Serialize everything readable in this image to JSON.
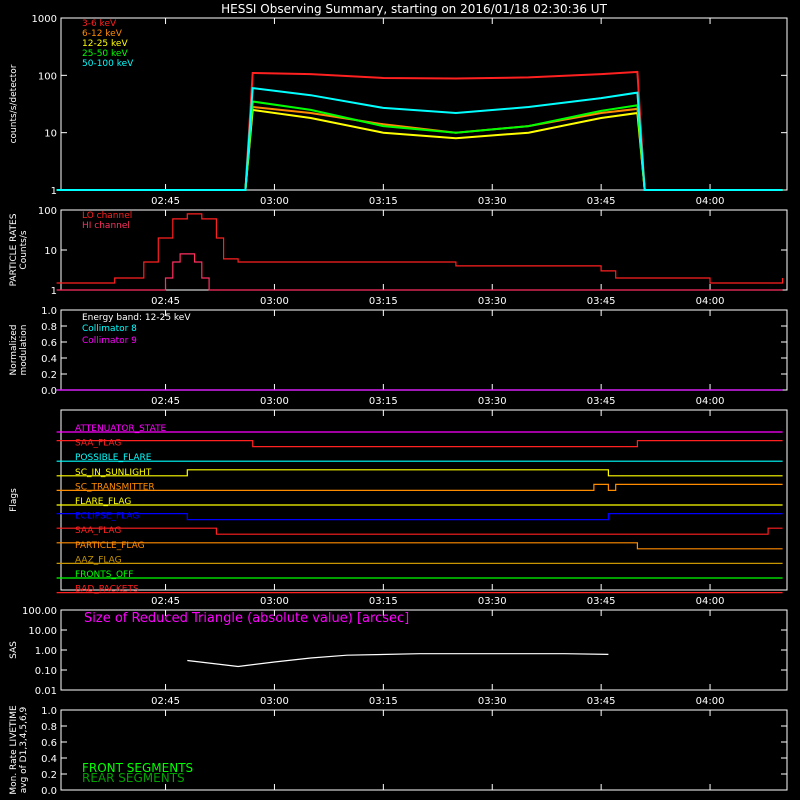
{
  "title": "HESSI Observing Summary, starting on 2016/01/18 02:30:36 UT",
  "time_ticks": [
    "02:45",
    "03:00",
    "03:15",
    "03:30",
    "03:45",
    "04:00"
  ],
  "chart_data": [
    {
      "id": "counts",
      "type": "line",
      "ylabel": "counts/s/detector",
      "yscale": "log",
      "ylim": [
        1,
        1000
      ],
      "y_ticks": [
        "1",
        "10",
        "100",
        "1000"
      ],
      "series": [
        {
          "name": "3-6 keV",
          "color": "#ff2020",
          "x": [
            "02:30",
            "02:56",
            "02:57",
            "03:05",
            "03:15",
            "03:25",
            "03:35",
            "03:45",
            "03:50",
            "03:51",
            "04:10"
          ],
          "y": [
            1,
            1,
            110,
            105,
            90,
            88,
            92,
            105,
            115,
            1,
            1
          ]
        },
        {
          "name": "6-12 keV",
          "color": "#ff8c00",
          "x": [
            "02:30",
            "02:56",
            "02:57",
            "03:05",
            "03:15",
            "03:25",
            "03:35",
            "03:45",
            "03:50",
            "03:51",
            "04:10"
          ],
          "y": [
            1,
            1,
            28,
            22,
            14,
            10,
            13,
            22,
            26,
            1,
            1
          ]
        },
        {
          "name": "12-25 keV",
          "color": "#ffff00",
          "x": [
            "02:30",
            "02:56",
            "02:57",
            "03:05",
            "03:15",
            "03:25",
            "03:35",
            "03:45",
            "03:50",
            "03:51",
            "04:10"
          ],
          "y": [
            1,
            1,
            25,
            18,
            10,
            8,
            10,
            18,
            22,
            1,
            1
          ]
        },
        {
          "name": "25-50 keV",
          "color": "#00ff00",
          "x": [
            "02:30",
            "02:56",
            "02:57",
            "03:05",
            "03:15",
            "03:25",
            "03:35",
            "03:45",
            "03:50",
            "03:51",
            "04:10"
          ],
          "y": [
            1,
            1,
            35,
            25,
            13,
            10,
            13,
            24,
            30,
            1,
            1
          ]
        },
        {
          "name": "50-100 keV",
          "color": "#00ffff",
          "x": [
            "02:30",
            "02:56",
            "02:57",
            "03:05",
            "03:15",
            "03:25",
            "03:35",
            "03:45",
            "03:50",
            "03:51",
            "04:10"
          ],
          "y": [
            1,
            1,
            60,
            45,
            27,
            22,
            28,
            40,
            50,
            1,
            1
          ]
        }
      ]
    },
    {
      "id": "particle",
      "type": "line",
      "ylabel_lines": [
        "PARTICLE RATES",
        "Counts/s"
      ],
      "yscale": "log",
      "ylim": [
        1,
        100
      ],
      "y_ticks": [
        "1",
        "10",
        "100"
      ],
      "series": [
        {
          "name": "LO channel",
          "color": "#ff2020",
          "x": [
            "02:30",
            "02:38",
            "02:42",
            "02:44",
            "02:46",
            "02:48",
            "02:50",
            "02:52",
            "02:53",
            "02:55",
            "03:05",
            "03:15",
            "03:25",
            "03:35",
            "03:45",
            "03:47",
            "04:00",
            "04:10"
          ],
          "y": [
            1.5,
            2,
            5,
            20,
            60,
            80,
            60,
            20,
            6,
            5,
            5,
            5,
            4,
            4,
            3,
            2,
            1.5,
            2
          ]
        },
        {
          "name": "HI channel",
          "color": "#ff3060",
          "x": [
            "02:30",
            "02:44",
            "02:45",
            "02:46",
            "02:47",
            "02:48",
            "02:49",
            "02:50",
            "02:51",
            "04:10"
          ],
          "y": [
            1,
            1,
            2,
            5,
            8,
            8,
            5,
            2,
            1,
            1
          ]
        }
      ]
    },
    {
      "id": "modulation",
      "type": "line",
      "ylabel_lines": [
        "Normalized",
        "modulation"
      ],
      "ylim": [
        0,
        1
      ],
      "y_ticks": [
        "0.0",
        "0.2",
        "0.4",
        "0.6",
        "0.8",
        "1.0"
      ],
      "legend_title": "Energy band: 12-25 keV",
      "series": [
        {
          "name": "Collimator 8",
          "color": "#00ffff",
          "x": [
            "02:30",
            "04:10"
          ],
          "y": [
            0,
            0
          ]
        },
        {
          "name": "Collimator 9",
          "color": "#ff00ff",
          "x": [
            "02:30",
            "04:10"
          ],
          "y": [
            0,
            0
          ]
        }
      ]
    },
    {
      "id": "flags",
      "type": "line",
      "ylabel": "Flags",
      "series": [
        {
          "name": "ATTENUATOR_STATE",
          "color": "#ff00ff",
          "x": [
            "02:30",
            "04:10"
          ],
          "y": [
            0,
            0
          ]
        },
        {
          "name": "SAA_FLAG",
          "color": "#ff2020",
          "x": [
            "02:30",
            "02:57",
            "02:57",
            "03:50",
            "03:50",
            "04:10"
          ],
          "y": [
            1,
            1,
            0,
            0,
            1,
            1
          ]
        },
        {
          "name": "POSSIBLE_FLARE",
          "color": "#00ffff",
          "x": [
            "02:30",
            "04:10"
          ],
          "y": [
            0,
            0
          ]
        },
        {
          "name": "SC_IN_SUNLIGHT",
          "color": "#ffff00",
          "x": [
            "02:30",
            "02:48",
            "02:48",
            "03:46",
            "03:46",
            "04:10"
          ],
          "y": [
            0,
            0,
            1,
            1,
            0,
            0
          ]
        },
        {
          "name": "SC_TRANSMITTER",
          "color": "#ff8c00",
          "x": [
            "02:30",
            "03:44",
            "03:44",
            "03:46",
            "03:46",
            "03:47",
            "03:47",
            "04:10"
          ],
          "y": [
            0,
            0,
            1,
            1,
            0,
            0,
            1,
            1
          ]
        },
        {
          "name": "FLARE_FLAG",
          "color": "#ffff00",
          "x": [
            "02:30",
            "04:10"
          ],
          "y": [
            0,
            0
          ]
        },
        {
          "name": "ECLIPSE_FLAG",
          "color": "#0000ff",
          "x": [
            "02:30",
            "02:48",
            "02:48",
            "03:46",
            "03:46",
            "04:10"
          ],
          "y": [
            1,
            1,
            0,
            0,
            1,
            1
          ]
        },
        {
          "name": "SAA_FLAG",
          "color": "#ff2020",
          "x": [
            "02:30",
            "02:52",
            "02:52",
            "04:08",
            "04:08",
            "04:10"
          ],
          "y": [
            1,
            1,
            0,
            0,
            1,
            1
          ]
        },
        {
          "name": "PARTICLE_FLAG",
          "color": "#ff8c00",
          "x": [
            "02:30",
            "03:50",
            "03:50",
            "04:10"
          ],
          "y": [
            1,
            1,
            0,
            0
          ]
        },
        {
          "name": "AAZ_FLAG",
          "color": "#c89600",
          "x": [
            "02:30",
            "04:10"
          ],
          "y": [
            0,
            0
          ]
        },
        {
          "name": "FRONTS_OFF",
          "color": "#00ff00",
          "x": [
            "02:30",
            "04:10"
          ],
          "y": [
            0,
            0
          ]
        },
        {
          "name": "BAD_PACKETS",
          "color": "#ff2020",
          "x": [
            "02:30",
            "04:10"
          ],
          "y": [
            0,
            0
          ]
        }
      ]
    },
    {
      "id": "sas",
      "type": "line",
      "ylabel": "SAS",
      "yscale": "log",
      "ylim": [
        0.01,
        100
      ],
      "y_ticks": [
        "0.01",
        "0.10",
        "1.00",
        "10.00",
        "100.00"
      ],
      "title": "Size of Reduced Triangle (absolute value) [arcsec]",
      "series": [
        {
          "name": "Size of Reduced Triangle",
          "color": "#ffffff",
          "x": [
            "02:48",
            "02:55",
            "03:00",
            "03:05",
            "03:10",
            "03:20",
            "03:30",
            "03:40",
            "03:46"
          ],
          "y": [
            0.3,
            0.15,
            0.25,
            0.4,
            0.55,
            0.65,
            0.65,
            0.65,
            0.6
          ]
        }
      ]
    },
    {
      "id": "livetime",
      "type": "line",
      "ylabel_lines": [
        "Mon. Rate LIVETIME",
        "avg of D1,3,4,5,6,9"
      ],
      "ylim": [
        0,
        1
      ],
      "y_ticks": [
        "0.0",
        "0.2",
        "0.4",
        "0.6",
        "0.8",
        "1.0"
      ],
      "series": [
        {
          "name": "FRONT SEGMENTS",
          "color": "#00ff00",
          "x": [],
          "y": []
        },
        {
          "name": "REAR SEGMENTS",
          "color": "#00a000",
          "x": [],
          "y": []
        }
      ]
    }
  ]
}
